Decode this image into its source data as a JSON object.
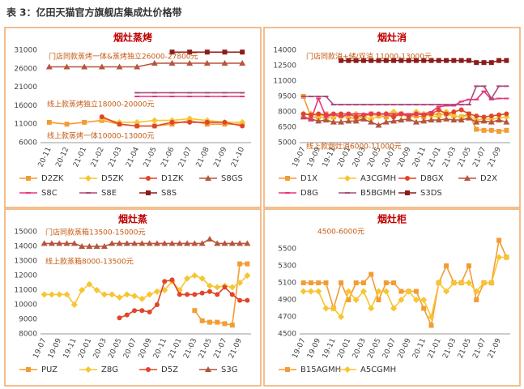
{
  "title": "表 3：亿田天猫官方旗舰店集成灶价格带",
  "chart_data": [
    {
      "type": "line",
      "title": "烟灶蒸烤",
      "annotations": [
        "门店同款蒸烤一体&蒸烤独立26000-27800元",
        "线上款蒸烤独立18000-20000元",
        "线上款蒸烤一体10000-13000元"
      ],
      "categories": [
        "20-11",
        "20-12",
        "21-01",
        "21-02",
        "21-03",
        "21-04",
        "21-05",
        "21-06",
        "21-07",
        "21-08",
        "21-09",
        "21-10"
      ],
      "ylim": [
        6000,
        31000
      ],
      "yticks": [
        6000,
        11000,
        16000,
        21000,
        26000,
        31000
      ],
      "series": [
        {
          "name": "D2ZK",
          "color": "#f39c34",
          "marker": "square",
          "values": [
            11500,
            11000,
            11500,
            12000,
            11000,
            10500,
            10500,
            11000,
            12000,
            11000,
            11000,
            11000
          ]
        },
        {
          "name": "D5ZK",
          "color": "#f7c531",
          "marker": "diamond",
          "values": [
            null,
            null,
            null,
            12500,
            11500,
            11500,
            12000,
            12000,
            12500,
            12000,
            11500,
            11500
          ]
        },
        {
          "name": "D1ZK",
          "color": "#e0452a",
          "marker": "circle",
          "values": [
            null,
            null,
            null,
            13000,
            11000,
            10500,
            10500,
            11500,
            11500,
            11500,
            11500,
            10500
          ]
        },
        {
          "name": "S8GS",
          "color": "#b5553c",
          "marker": "triangle",
          "values": [
            26500,
            26500,
            26500,
            26500,
            26500,
            26500,
            27500,
            27500,
            27500,
            27500,
            27500,
            27500
          ]
        },
        {
          "name": "S8C",
          "color": "#e8357a",
          "marker": "dash",
          "values": [
            null,
            null,
            null,
            null,
            null,
            18500,
            18500,
            18500,
            18500,
            18500,
            18500,
            18500
          ]
        },
        {
          "name": "S8E",
          "color": "#a94a7c",
          "marker": "dash",
          "values": [
            null,
            null,
            null,
            null,
            null,
            19500,
            19500,
            19500,
            19500,
            19500,
            19500,
            19500
          ]
        },
        {
          "name": "S8S",
          "color": "#8c1c1c",
          "marker": "square",
          "values": [
            null,
            null,
            null,
            null,
            null,
            null,
            null,
            30500,
            30500,
            30500,
            30500,
            30500
          ]
        }
      ]
    },
    {
      "type": "line",
      "title": "烟灶消",
      "annotations": [
        "门店同款消+储/双消 11000-13000元",
        "线上款烟灶消6000-11000元"
      ],
      "categories": [
        "19-07",
        null,
        "19-09",
        null,
        "19-11",
        null,
        "20-01",
        null,
        "20-03",
        null,
        "20-05",
        null,
        "20-07",
        null,
        "20-09",
        null,
        "20-11",
        null,
        "21-01",
        null,
        "21-03",
        null,
        "21-05",
        null,
        "21-07",
        null,
        "21-09",
        null
      ],
      "ylim": [
        5000,
        14000
      ],
      "yticks": [
        5000,
        6500,
        8000,
        9500,
        11000,
        12500,
        14000
      ],
      "series": [
        {
          "name": "D1X",
          "color": "#f39c34",
          "marker": "square",
          "values": [
            9500,
            7500,
            7500,
            7800,
            7500,
            7600,
            7500,
            7300,
            7500,
            7800,
            7600,
            7500,
            7700,
            7800,
            7500,
            7600,
            7500,
            7800,
            7700,
            7800,
            7600,
            7500,
            7800,
            6300,
            6200,
            6200,
            6100,
            6200
          ]
        },
        {
          "name": "A3CGMH",
          "color": "#f7c531",
          "marker": "diamond",
          "values": [
            7800,
            7800,
            7600,
            7300,
            7600,
            7500,
            7700,
            7800,
            7500,
            7300,
            7600,
            7800,
            8000,
            7800,
            7600,
            8000,
            7800,
            7600,
            7500,
            8000,
            7600,
            7500,
            7600,
            7200,
            7300,
            7300,
            7400,
            7500
          ]
        },
        {
          "name": "D8GX",
          "color": "#e0452a",
          "marker": "circle",
          "values": [
            7800,
            7700,
            7800,
            7700,
            7800,
            7800,
            7800,
            7500,
            7700,
            7800,
            7800,
            7800,
            7500,
            7800,
            7600,
            7800,
            7700,
            7800,
            8200,
            7800,
            8000,
            8200,
            7800,
            7600,
            7500,
            7600,
            7700,
            7800
          ]
        },
        {
          "name": "D2X",
          "color": "#b5553c",
          "marker": "triangle",
          "values": [
            7500,
            7300,
            7100,
            7200,
            7000,
            7000,
            7100,
            7100,
            7300,
            7000,
            6700,
            7000,
            7100,
            7200,
            7300,
            7000,
            7100,
            7200,
            7200,
            7300,
            7200,
            7200,
            7400,
            7000,
            7100,
            7000,
            7200,
            7000
          ]
        },
        {
          "name": "D8G",
          "color": "#e8357a",
          "marker": "dash",
          "values": [
            7500,
            7200,
            9300,
            7500,
            7800,
            7500,
            7800,
            7800,
            7800,
            7800,
            7800,
            7800,
            7800,
            7800,
            7800,
            7800,
            7800,
            8000,
            8500,
            8600,
            8600,
            9000,
            9200,
            9200,
            10000,
            9200,
            9300,
            9300
          ]
        },
        {
          "name": "B5BGMH",
          "color": "#a94a7c",
          "marker": "dash",
          "values": [
            9500,
            9500,
            9500,
            9500,
            8700,
            8700,
            8700,
            8700,
            8700,
            8700,
            8700,
            8700,
            8700,
            8700,
            8700,
            8700,
            8700,
            8700,
            8700,
            8700,
            8700,
            8700,
            8700,
            10500,
            10500,
            9300,
            10500,
            10500
          ]
        },
        {
          "name": "S3DS",
          "color": "#8c1c1c",
          "marker": "square",
          "values": [
            null,
            null,
            null,
            null,
            null,
            13000,
            13000,
            13000,
            13000,
            13000,
            13000,
            13000,
            13000,
            13000,
            13000,
            13000,
            13000,
            13000,
            13000,
            13000,
            13000,
            13000,
            13000,
            12800,
            12800,
            12800,
            13000,
            13000
          ]
        }
      ]
    },
    {
      "type": "line",
      "title": "烟灶蒸",
      "annotations": [
        "门店同款蒸箱13500-15000元",
        "线上款蒸箱8000-13500元"
      ],
      "categories": [
        "19-07",
        null,
        "19-09",
        null,
        "19-11",
        null,
        "20-01",
        null,
        "20-03",
        null,
        "20-05",
        null,
        "20-07",
        null,
        "20-09",
        null,
        "20-11",
        null,
        "21-01",
        null,
        "21-03",
        null,
        "21-05",
        null,
        "21-07",
        null,
        "21-09",
        null
      ],
      "ylim": [
        8000,
        15000
      ],
      "yticks": [
        8000,
        9000,
        10000,
        11000,
        12000,
        13000,
        14000,
        15000
      ],
      "series": [
        {
          "name": "PUZ",
          "color": "#f39c34",
          "marker": "square",
          "values": [
            null,
            null,
            null,
            null,
            null,
            null,
            null,
            null,
            null,
            null,
            null,
            null,
            null,
            null,
            null,
            null,
            null,
            null,
            null,
            null,
            9600,
            8900,
            8800,
            8800,
            8700,
            8600,
            12800,
            12800
          ]
        },
        {
          "name": "Z8G",
          "color": "#f7c531",
          "marker": "diamond",
          "values": [
            10700,
            10700,
            10700,
            10700,
            10000,
            11000,
            11400,
            11000,
            10700,
            10700,
            10500,
            10700,
            10600,
            10400,
            10700,
            10900,
            11000,
            11600,
            11000,
            11800,
            12000,
            11800,
            11300,
            11200,
            11300,
            11200,
            11500,
            12000
          ]
        },
        {
          "name": "D5Z",
          "color": "#e0452a",
          "marker": "circle",
          "values": [
            null,
            null,
            null,
            null,
            null,
            null,
            null,
            null,
            null,
            null,
            9100,
            9300,
            9600,
            9600,
            9500,
            10000,
            11600,
            11700,
            10700,
            10700,
            10700,
            10800,
            10900,
            10700,
            11200,
            10700,
            10300,
            10300
          ]
        },
        {
          "name": "S3G",
          "color": "#b5553c",
          "marker": "triangle",
          "values": [
            14200,
            14200,
            14200,
            14200,
            14200,
            14000,
            14000,
            14000,
            14000,
            14200,
            14200,
            14200,
            14200,
            14200,
            14200,
            14200,
            14200,
            14200,
            14200,
            14200,
            14200,
            14200,
            14500,
            14200,
            14200,
            14200,
            14200,
            14200
          ]
        }
      ]
    },
    {
      "type": "line",
      "title": "烟灶柜",
      "annotations": [
        "4500-6000元"
      ],
      "categories": [
        "19-07",
        null,
        "19-09",
        null,
        "19-11",
        null,
        "20-01",
        null,
        "20-03",
        null,
        "20-05",
        null,
        "20-07",
        null,
        "20-09",
        null,
        "20-11",
        null,
        "21-01",
        null,
        "21-03",
        null,
        "21-05",
        null,
        "21-07",
        null,
        "21-09",
        null
      ],
      "ylim": [
        4500,
        5700
      ],
      "yticks": [
        4500,
        4700,
        4900,
        5100,
        5300,
        5500
      ],
      "series": [
        {
          "name": "B15AGMH",
          "color": "#f39c34",
          "marker": "square",
          "values": [
            5100,
            5100,
            5100,
            5100,
            4800,
            5100,
            4900,
            5100,
            5100,
            5200,
            4900,
            5100,
            5100,
            5000,
            5000,
            5000,
            4800,
            4600,
            5100,
            5300,
            5100,
            5100,
            5300,
            4900,
            5100,
            5100,
            5600,
            5400
          ]
        },
        {
          "name": "A5CGMH",
          "color": "#f7c531",
          "marker": "diamond",
          "values": [
            5000,
            5000,
            5000,
            4800,
            4800,
            4700,
            5000,
            4900,
            5000,
            4800,
            5000,
            5000,
            4800,
            4900,
            5000,
            4900,
            4900,
            4700,
            5100,
            5000,
            5100,
            5100,
            5100,
            5000,
            5100,
            5100,
            5400,
            5400
          ]
        }
      ]
    }
  ]
}
